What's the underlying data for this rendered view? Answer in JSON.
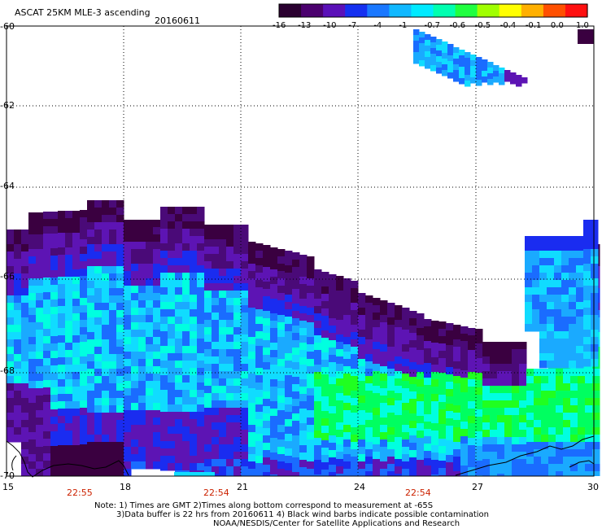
{
  "header": {
    "title": "ASCAT 25KM MLE-3 ascending",
    "date": "20160611"
  },
  "colorbar": {
    "labels": [
      "-16",
      "-13",
      "-10",
      "-7",
      "-4",
      "-1",
      "-0.7",
      "-0.6",
      "-0.5",
      "-0.4",
      "-0.1",
      "0.0",
      "1.0"
    ],
    "colors": [
      "#2a0030",
      "#4b006e",
      "#5a10b8",
      "#1530f0",
      "#1a78ff",
      "#10b8ff",
      "#00eaff",
      "#00ffb0",
      "#20ff40",
      "#a0ff00",
      "#ffff00",
      "#ffb000",
      "#ff5000",
      "#ff1010"
    ]
  },
  "map": {
    "lat_labels": [
      "-60",
      "-62",
      "-64",
      "-66",
      "-68",
      "-70"
    ],
    "lon_labels": [
      "15",
      "18",
      "21",
      "24",
      "27",
      "30"
    ],
    "time_labels": [
      "22:55",
      "22:54",
      "22:54"
    ]
  },
  "footer": {
    "note_line1": "Note: 1) Times are GMT 2)Times along bottom correspond to measurement at -65S",
    "note_line2": "3)Data buffer is 22 hrs from 20160611 4) Black wind barbs indicate possible contamination",
    "credit": "NOAA/NESDIS/Center for Satellite Applications and Research"
  }
}
